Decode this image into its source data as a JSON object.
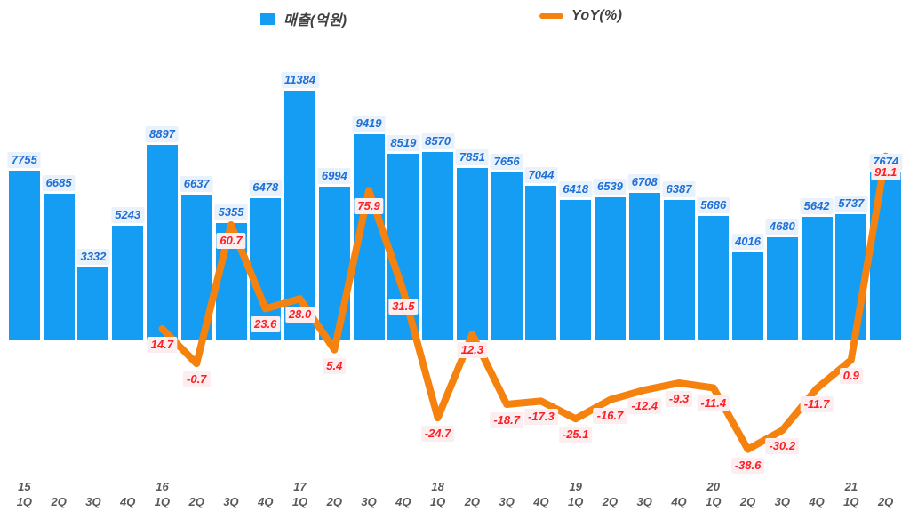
{
  "legend": {
    "revenue_label": "매출(억원)",
    "yoy_label": "YoY(%)"
  },
  "colors": {
    "bar": "#149df2",
    "bar_label_text": "#1e6fd6",
    "bar_label_bg": "#e9f1fa",
    "line": "#f5820f",
    "yoy_label_text": "#fb2027",
    "yoy_label_bg": "#fcedee",
    "axis_text": "#595959",
    "legend_text": "#3f3f3f",
    "background": "#ffffff"
  },
  "chart_data": {
    "type": "combo",
    "title": "",
    "grid": false,
    "legend_position": "top-center",
    "categories": [
      "1Q",
      "2Q",
      "3Q",
      "4Q",
      "1Q",
      "2Q",
      "3Q",
      "4Q",
      "1Q",
      "2Q",
      "3Q",
      "4Q",
      "1Q",
      "2Q",
      "3Q",
      "4Q",
      "1Q",
      "2Q",
      "3Q",
      "4Q",
      "1Q",
      "2Q",
      "3Q",
      "4Q",
      "1Q",
      "2Q"
    ],
    "year_labels": [
      "15",
      "",
      "",
      "",
      "16",
      "",
      "",
      "",
      "17",
      "",
      "",
      "",
      "18",
      "",
      "",
      "",
      "19",
      "",
      "",
      "",
      "20",
      "",
      "",
      "",
      "21",
      ""
    ],
    "series": [
      {
        "name": "매출(억원)",
        "type": "bar",
        "values": [
          7755,
          6685,
          3332,
          5243,
          8897,
          6637,
          5355,
          6478,
          11384,
          6994,
          9419,
          8519,
          8570,
          7851,
          7656,
          7044,
          6418,
          6539,
          6708,
          6387,
          5686,
          4016,
          4680,
          5642,
          5737,
          7674
        ]
      },
      {
        "name": "YoY(%)",
        "type": "line",
        "start_index": 4,
        "values": [
          14.7,
          -0.7,
          60.7,
          23.6,
          28.0,
          5.4,
          75.9,
          31.5,
          -24.7,
          12.3,
          -18.7,
          -17.3,
          -25.1,
          -16.7,
          -12.4,
          -9.3,
          -11.4,
          -38.6,
          -30.2,
          -11.7,
          0.9,
          91.1
        ]
      }
    ],
    "bar_value_max": 11384,
    "x_axis_note": "years 2015 1Q through 2021 2Q, year shown above each 1Q label"
  }
}
